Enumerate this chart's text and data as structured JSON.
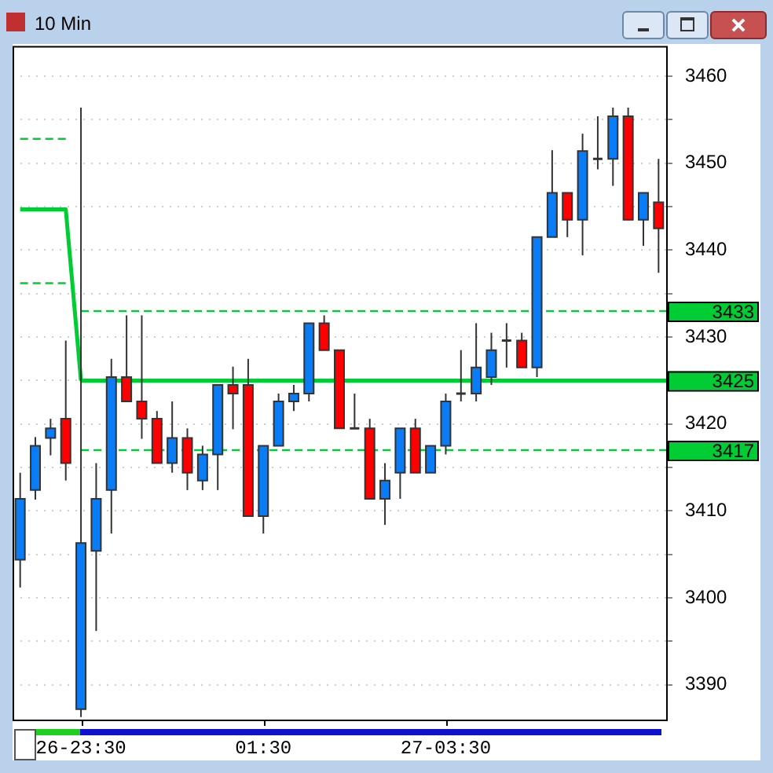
{
  "chart_data": {
    "type": "candlestick",
    "title": "10 Min",
    "categories": [
      null,
      null,
      null,
      null,
      "26-23:30",
      null,
      null,
      null,
      null,
      null,
      null,
      null,
      null,
      null,
      null,
      null,
      "01:30",
      null,
      null,
      null,
      null,
      null,
      null,
      null,
      null,
      null,
      null,
      null,
      "27-03:30",
      null,
      null,
      null,
      null,
      null,
      null,
      null,
      null,
      null,
      null,
      null,
      null,
      null,
      null
    ],
    "series": [
      {
        "type": "candlestick",
        "ohlc": [
          [
            3404.4,
            3414.4,
            3401.2,
            3411.4
          ],
          [
            3412.4,
            3418.5,
            3411.3,
            3417.5
          ],
          [
            3418.4,
            3420.6,
            3416.4,
            3419.5
          ],
          [
            3420.6,
            3429.6,
            3413.5,
            3415.5
          ],
          [
            3387.2,
            3456.4,
            3386.3,
            3406.3
          ],
          [
            3405.4,
            3415.5,
            3396.2,
            3411.4
          ],
          [
            3412.4,
            3427.5,
            3407.4,
            3425.4
          ],
          [
            3425.4,
            3432.5,
            3422.6,
            3422.6
          ],
          [
            3422.6,
            3432.5,
            3418.3,
            3420.6
          ],
          [
            3420.6,
            3421.5,
            3415.5,
            3415.5
          ],
          [
            3415.5,
            3422.6,
            3414.4,
            3418.4
          ],
          [
            3418.4,
            3419.5,
            3412.4,
            3414.4
          ],
          [
            3413.5,
            3417.5,
            3412.4,
            3416.5
          ],
          [
            3416.5,
            3424.5,
            3412.4,
            3424.5
          ],
          [
            3424.5,
            3426.6,
            3419.4,
            3423.5
          ],
          [
            3424.5,
            3427.5,
            3409.4,
            3409.4
          ],
          [
            3409.4,
            3417.5,
            3407.4,
            3417.5
          ],
          [
            3417.5,
            3423.5,
            3417.5,
            3422.6
          ],
          [
            3422.6,
            3424.5,
            3421.5,
            3423.5
          ],
          [
            3423.5,
            3431.6,
            3422.6,
            3431.6
          ],
          [
            3431.6,
            3432.5,
            3428.5,
            3428.5
          ],
          [
            3428.5,
            3428.5,
            3419.5,
            3419.5
          ],
          [
            3419.5,
            3423.5,
            3419.5,
            3419.5
          ],
          [
            3419.5,
            3420.6,
            3411.4,
            3411.4
          ],
          [
            3411.4,
            3415.5,
            3408.4,
            3413.5
          ],
          [
            3414.4,
            3419.5,
            3411.4,
            3419.5
          ],
          [
            3419.5,
            3420.6,
            3414.4,
            3414.4
          ],
          [
            3414.4,
            3417.5,
            3414.4,
            3417.5
          ],
          [
            3417.5,
            3423.5,
            3416.5,
            3422.6
          ],
          [
            3423.5,
            3428.5,
            3422.6,
            3423.5
          ],
          [
            3423.5,
            3431.6,
            3422.6,
            3426.5
          ],
          [
            3425.4,
            3430.5,
            3424.5,
            3428.5
          ],
          [
            3429.6,
            3431.6,
            3426.5,
            3429.6
          ],
          [
            3429.6,
            3430.5,
            3426.5,
            3426.5
          ],
          [
            3426.5,
            3441.5,
            3425.4,
            3441.5
          ],
          [
            3441.5,
            3451.5,
            3441.5,
            3446.6
          ],
          [
            3446.6,
            3446.6,
            3441.5,
            3443.5
          ],
          [
            3443.5,
            3453.4,
            3439.4,
            3451.4
          ],
          [
            3450.5,
            3455.4,
            3449.3,
            3450.5
          ],
          [
            3450.5,
            3456.4,
            3447.4,
            3455.4
          ],
          [
            3455.4,
            3456.4,
            3443.5,
            3443.5
          ],
          [
            3443.5,
            3446.6,
            3440.5,
            3446.6
          ],
          [
            3445.5,
            3450.5,
            3437.4,
            3442.5
          ]
        ],
        "colors": [
          "#0a7cf5",
          "#0a7cf5",
          "#0a7cf5",
          "#ff0000",
          "#0a7cf5",
          "#0a7cf5",
          "#0a7cf5",
          "#ff0000",
          "#ff0000",
          "#ff0000",
          "#0a7cf5",
          "#ff0000",
          "#0a7cf5",
          "#0a7cf5",
          "#ff0000",
          "#ff0000",
          "#0a7cf5",
          "#0a7cf5",
          "#0a7cf5",
          "#0a7cf5",
          "#ff0000",
          "#ff0000",
          "#333333",
          "#ff0000",
          "#0a7cf5",
          "#0a7cf5",
          "#ff0000",
          "#0a7cf5",
          "#0a7cf5",
          "#333333",
          "#0a7cf5",
          "#0a7cf5",
          "#333333",
          "#ff0000",
          "#0a7cf5",
          "#0a7cf5",
          "#ff0000",
          "#0a7cf5",
          "#333333",
          "#0a7cf5",
          "#ff0000",
          "#0a7cf5",
          "#ff0000"
        ]
      },
      {
        "type": "line",
        "color": "#00cc33",
        "line_style": "solid",
        "values": [
          3444.7,
          3444.7,
          3444.7,
          3444.7,
          3425,
          null,
          null,
          null,
          null,
          null,
          null,
          null,
          null,
          null,
          null,
          null,
          null,
          null,
          null,
          null,
          null,
          null,
          null,
          null,
          null,
          null,
          null,
          null,
          null,
          null,
          null,
          null,
          null,
          null,
          null,
          null,
          null,
          null,
          null,
          null,
          null,
          null,
          null
        ]
      },
      {
        "type": "line",
        "color": "#00cc33",
        "line_style": "dashed",
        "values": [
          3452.8,
          3452.8,
          3452.8,
          3452.8,
          null,
          null,
          null,
          null,
          null,
          null,
          null,
          null,
          null,
          null,
          null,
          null,
          null,
          null,
          null,
          null,
          null,
          null,
          null,
          null,
          null,
          null,
          null,
          null,
          null,
          null,
          null,
          null,
          null,
          null,
          null,
          null,
          null,
          null,
          null,
          null,
          null,
          null,
          null
        ]
      },
      {
        "type": "line",
        "color": "#00cc33",
        "line_style": "dashed",
        "values": [
          3436.2,
          3436.2,
          3436.2,
          3436.2,
          null,
          null,
          null,
          null,
          null,
          null,
          null,
          null,
          null,
          null,
          null,
          null,
          null,
          null,
          null,
          null,
          null,
          null,
          null,
          null,
          null,
          null,
          null,
          null,
          null,
          null,
          null,
          null,
          null,
          null,
          null,
          null,
          null,
          null,
          null,
          null,
          null,
          null,
          null
        ]
      }
    ],
    "ylim": [
      3386,
      3463.5
    ],
    "yticks": [
      3390,
      {
        "value": 3395,
        "label": null
      },
      3400,
      {
        "value": 3405,
        "label": null
      },
      3410,
      {
        "value": 3415,
        "label": null
      },
      3420,
      {
        "value": 3425,
        "label": null
      },
      3430,
      {
        "value": 3435,
        "label": null
      },
      3440,
      {
        "value": 3445,
        "label": null
      },
      3450,
      {
        "value": 3455,
        "label": null
      },
      3460
    ],
    "grid": true,
    "legend": false,
    "ref_lines": [
      {
        "axis": "y",
        "value": 3433,
        "label": "3433",
        "color": "#00cc33",
        "line_style": "dashed"
      },
      {
        "axis": "y",
        "value": 3425,
        "label": "3425",
        "color": "#00cc33",
        "line_style": "solid"
      },
      {
        "axis": "y",
        "value": 3417,
        "label": "3417",
        "color": "#00cc33",
        "line_style": "dashed"
      }
    ]
  }
}
